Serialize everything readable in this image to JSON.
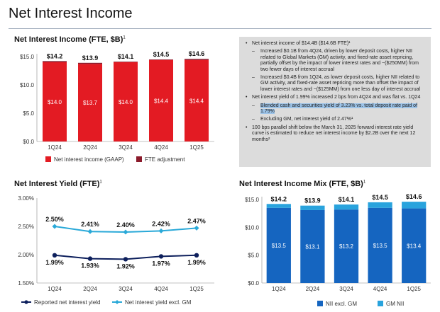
{
  "page": {
    "title": "Net Interest Income"
  },
  "colors": {
    "red_dark": "#8b1a2b",
    "red": "#e31b23",
    "navy": "#0d1f5c",
    "cyan": "#2aa9d8",
    "blue": "#1565c0",
    "light_blue": "#29a3dd"
  },
  "bullets": {
    "items": [
      {
        "level": 1,
        "text": "Net interest income of $14.4B ($14.6B FTE)¹"
      },
      {
        "level": 2,
        "text": "Increased $0.1B from 4Q24, driven by lower deposit costs, higher NII related to Global Markets (GM) activity, and fixed-rate asset repricing, partially offset by the impact of lower interest rates and ~($250MM) from two fewer days of interest accrual"
      },
      {
        "level": 2,
        "text": "Increased $0.4B from 1Q24, as lower deposit costs, higher NII related to GM activity, and fixed-rate asset repricing more than offset the impact of lower interest rates and ~($125MM) from one less day of interest accrual"
      },
      {
        "level": 1,
        "text": "Net interest yield of 1.99% increased 2 bps from 4Q24 and was flat vs. 1Q24"
      },
      {
        "level": 2,
        "text": "Blended cash and securities yield of 3.23% vs. total deposit rate paid of 1.79%",
        "highlight": true
      },
      {
        "level": 2,
        "text": "Excluding GM, net interest yield of 2.47%¹"
      },
      {
        "level": 1,
        "text": "100 bps parallel shift below the March 31, 2025 forward interest rate yield curve is estimated to reduce net interest income by $2.2B over the next 12 months²"
      }
    ]
  },
  "chart_data": [
    {
      "id": "nii",
      "type": "bar",
      "stacked": true,
      "title": "Net Interest Income (FTE, $B)",
      "title_sup": "1",
      "categories": [
        "1Q24",
        "2Q24",
        "3Q24",
        "4Q24",
        "1Q25"
      ],
      "series": [
        {
          "name": "Net interest income (GAAP)",
          "values": [
            14.0,
            13.7,
            14.0,
            14.4,
            14.4
          ],
          "color": "#e31b23"
        },
        {
          "name": "FTE adjustment",
          "values": [
            0.2,
            0.2,
            0.1,
            0.1,
            0.2
          ],
          "color": "#8b1a2b"
        }
      ],
      "inner_labels": [
        "$14.0",
        "$13.7",
        "$14.0",
        "$14.4",
        "$14.4"
      ],
      "total_labels": [
        "$14.2",
        "$13.9",
        "$14.1",
        "$14.5",
        "$14.6"
      ],
      "ylim": [
        0,
        15
      ],
      "yticks": [
        0,
        5,
        10,
        15
      ],
      "ytick_labels": [
        "$0.0",
        "$5.0",
        "$10.0",
        "$15.0"
      ],
      "legend": "bottom"
    },
    {
      "id": "niy",
      "type": "line",
      "title": "Net Interest Yield (FTE)",
      "title_sup": "1",
      "categories": [
        "1Q24",
        "2Q24",
        "3Q24",
        "4Q24",
        "1Q25"
      ],
      "series": [
        {
          "name": "Reported net interest yield",
          "values": [
            1.99,
            1.93,
            1.92,
            1.97,
            1.99
          ],
          "labels": [
            "1.99%",
            "1.93%",
            "1.92%",
            "1.97%",
            "1.99%"
          ],
          "color": "#0d1f5c"
        },
        {
          "name": "Net interest yield excl. GM",
          "values": [
            2.5,
            2.41,
            2.4,
            2.42,
            2.47
          ],
          "labels": [
            "2.50%",
            "2.41%",
            "2.40%",
            "2.42%",
            "2.47%"
          ],
          "color": "#2aa9d8"
        }
      ],
      "ylim": [
        1.5,
        3.0
      ],
      "yticks": [
        1.5,
        2.0,
        2.5,
        3.0
      ],
      "ytick_labels": [
        "1.50%",
        "2.00%",
        "2.50%",
        "3.00%"
      ],
      "legend": "bottom"
    },
    {
      "id": "mix",
      "type": "bar",
      "stacked": true,
      "title": "Net Interest Income Mix (FTE, $B)",
      "title_sup": "1",
      "categories": [
        "1Q24",
        "2Q24",
        "3Q24",
        "4Q24",
        "1Q25"
      ],
      "series": [
        {
          "name": "NII excl. GM",
          "values": [
            13.5,
            13.1,
            13.2,
            13.5,
            13.4
          ],
          "color": "#1565c0"
        },
        {
          "name": "GM NII",
          "values": [
            0.7,
            0.8,
            0.9,
            1.0,
            1.2
          ],
          "color": "#29a3dd"
        }
      ],
      "inner_labels": [
        "$13.5",
        "$13.1",
        "$13.2",
        "$13.5",
        "$13.4"
      ],
      "total_labels": [
        "$14.2",
        "$13.9",
        "$14.1",
        "$14.5",
        "$14.6"
      ],
      "ylim": [
        0,
        15
      ],
      "yticks": [
        0,
        5,
        10,
        15
      ],
      "ytick_labels": [
        "$0.0",
        "$5.0",
        "$10.0",
        "$15.0"
      ],
      "legend": "bottom"
    }
  ]
}
